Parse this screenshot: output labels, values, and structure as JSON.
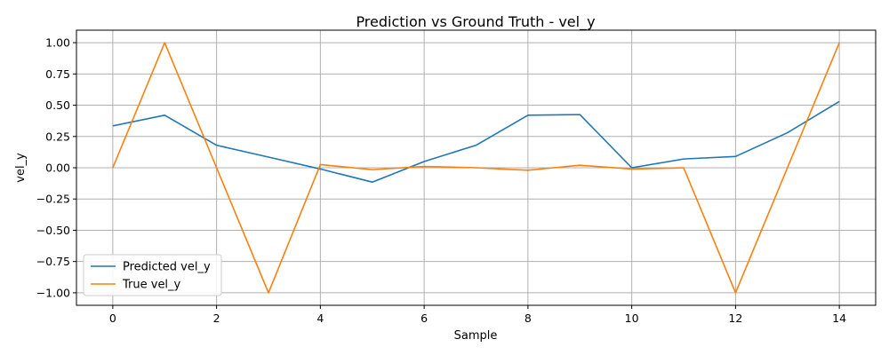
{
  "chart_data": {
    "type": "line",
    "title": "Prediction vs Ground Truth - vel_y",
    "xlabel": "Sample",
    "ylabel": "vel_y",
    "x": [
      0,
      1,
      2,
      3,
      4,
      5,
      6,
      7,
      8,
      9,
      10,
      11,
      12,
      13,
      14
    ],
    "xlim": [
      -0.7,
      14.7
    ],
    "ylim": [
      -1.1,
      1.1
    ],
    "xticks": [
      0,
      2,
      4,
      6,
      8,
      10,
      12,
      14
    ],
    "xtick_labels": [
      "0",
      "2",
      "4",
      "6",
      "8",
      "10",
      "12",
      "14"
    ],
    "yticks": [
      1.0,
      0.75,
      0.5,
      0.25,
      0.0,
      -0.25,
      -0.5,
      -0.75,
      -1.0
    ],
    "ytick_labels": [
      "1.00",
      "0.75",
      "0.50",
      "0.25",
      "0.00",
      "−0.25",
      "−0.50",
      "−0.75",
      "−1.00"
    ],
    "grid": true,
    "legend_position": "lower-left",
    "series": [
      {
        "name": "Predicted vel_y",
        "color": "#1f77b4",
        "values": [
          0.335,
          0.42,
          0.18,
          0.085,
          -0.01,
          -0.115,
          0.05,
          0.18,
          0.42,
          0.425,
          0.0,
          0.07,
          0.09,
          0.28,
          0.53
        ]
      },
      {
        "name": "True vel_y",
        "color": "#ff7f0e",
        "values": [
          0.0,
          1.0,
          0.0,
          -1.0,
          0.025,
          -0.015,
          0.01,
          0.0,
          -0.02,
          0.02,
          -0.01,
          0.0,
          -1.0,
          0.0,
          1.0
        ]
      }
    ]
  }
}
